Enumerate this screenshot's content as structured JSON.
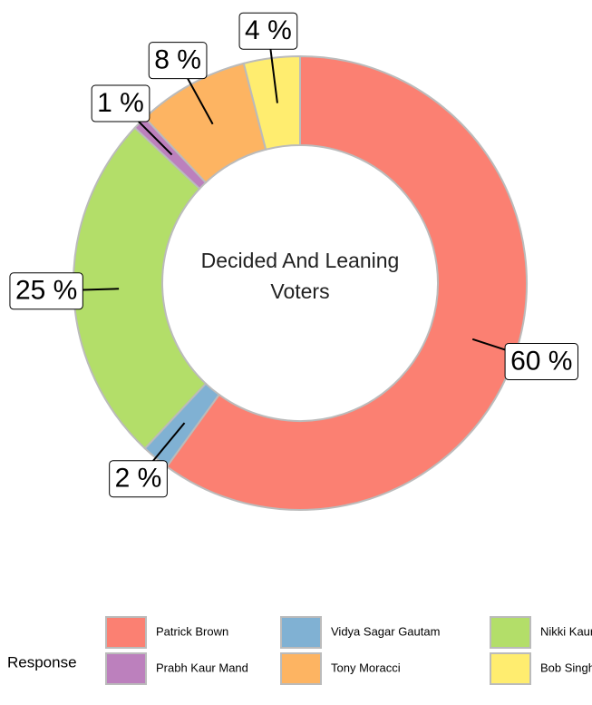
{
  "chart_data": {
    "type": "donut",
    "title": "Decided And Leaning Voters",
    "legend_title": "Response",
    "categories": [
      "Patrick Brown",
      "Vidya Sagar Gautam",
      "Nikki Kaur",
      "Prabh Kaur Mand",
      "Tony Moracci",
      "Bob Singh"
    ],
    "values": [
      60,
      2,
      25,
      1,
      8,
      4
    ],
    "value_labels": [
      "60 %",
      "2 %",
      "25 %",
      "1 %",
      "8 %",
      "4 %"
    ],
    "colors": [
      "#fb8072",
      "#80b1d3",
      "#b3de69",
      "#bc80bd",
      "#fdb462",
      "#ffed6f"
    ],
    "legend_position": "bottom"
  }
}
